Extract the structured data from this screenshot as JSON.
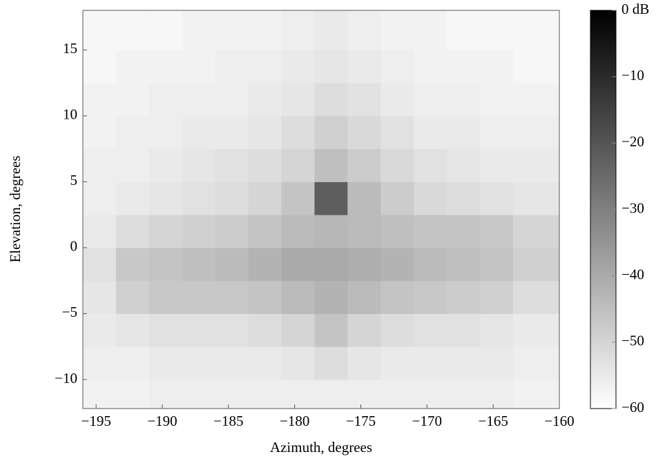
{
  "chart_data": {
    "type": "heatmap",
    "x_label": "Azimuth, degrees",
    "y_label": "Elevation, degrees",
    "xlim": [
      -196,
      -160
    ],
    "ylim": [
      -12.2,
      18
    ],
    "xticks": [
      {
        "value": -195,
        "label": "−195"
      },
      {
        "value": -190,
        "label": "−190"
      },
      {
        "value": -185,
        "label": "−185"
      },
      {
        "value": -180,
        "label": "−180"
      },
      {
        "value": -175,
        "label": "−175"
      },
      {
        "value": -170,
        "label": "−170"
      },
      {
        "value": -165,
        "label": "−165"
      },
      {
        "value": -160,
        "label": "−160"
      }
    ],
    "yticks": [
      {
        "value": -10,
        "label": "−10"
      },
      {
        "value": -5,
        "label": "−5"
      },
      0,
      5,
      10,
      15
    ],
    "xbins": [
      -196,
      -193.5,
      -191,
      -188.5,
      -186,
      -183.5,
      -181,
      -178.5,
      -176,
      -173.5,
      -171,
      -168.5,
      -166,
      -163.5,
      -160
    ],
    "ybins": [
      -12.2,
      -10,
      -7.5,
      -5,
      -2.5,
      0,
      2.5,
      5,
      7.5,
      10,
      12.5,
      15,
      18
    ],
    "z": [
      [
        -57,
        -57,
        -56,
        -56,
        -56,
        -56,
        -56,
        -56,
        -56,
        -56,
        -56,
        -56,
        -56,
        -57
      ],
      [
        -56,
        -56,
        -55,
        -55,
        -55,
        -55,
        -54,
        -52,
        -54,
        -55,
        -55,
        -55,
        -55,
        -56
      ],
      [
        -55,
        -54,
        -53,
        -53,
        -53,
        -52,
        -50,
        -46,
        -50,
        -52,
        -53,
        -53,
        -54,
        -55
      ],
      [
        -54,
        -49,
        -47,
        -47,
        -47,
        -46,
        -44,
        -42,
        -44,
        -46,
        -47,
        -48,
        -49,
        -52
      ],
      [
        -53,
        -47,
        -46,
        -45,
        -44,
        -42,
        -40,
        -40,
        -41,
        -42,
        -44,
        -45,
        -46,
        -49
      ],
      [
        -55,
        -52,
        -50,
        -49,
        -48,
        -46,
        -44,
        -43,
        -44,
        -45,
        -46,
        -46,
        -47,
        -50
      ],
      [
        -56,
        -55,
        -54,
        -53,
        -52,
        -50,
        -46,
        -22,
        -44,
        -48,
        -51,
        -52,
        -53,
        -54
      ],
      [
        -56,
        -56,
        -55,
        -54,
        -53,
        -52,
        -50,
        -45,
        -48,
        -51,
        -53,
        -54,
        -55,
        -55
      ],
      [
        -57,
        -56,
        -56,
        -55,
        -55,
        -54,
        -52,
        -49,
        -51,
        -53,
        -55,
        -55,
        -56,
        -56
      ],
      [
        -57,
        -57,
        -56,
        -56,
        -56,
        -55,
        -54,
        -52,
        -53,
        -55,
        -56,
        -56,
        -57,
        -57
      ],
      [
        -58,
        -57,
        -57,
        -57,
        -56,
        -56,
        -55,
        -54,
        -55,
        -56,
        -57,
        -57,
        -57,
        -58
      ],
      [
        -58,
        -58,
        -58,
        -57,
        -57,
        -57,
        -56,
        -55,
        -56,
        -57,
        -57,
        -58,
        -58,
        -58
      ]
    ],
    "clim": [
      -60,
      0
    ],
    "cticks": [
      {
        "value": 0,
        "label": "0 dB"
      },
      {
        "value": -10,
        "label": "−10"
      },
      {
        "value": -20,
        "label": "−20"
      },
      {
        "value": -30,
        "label": "−30"
      },
      {
        "value": -40,
        "label": "−40"
      },
      {
        "value": -50,
        "label": "−50"
      },
      {
        "value": -60,
        "label": "−60"
      }
    ],
    "colormap": [
      "#000000",
      "#ffffff"
    ]
  }
}
